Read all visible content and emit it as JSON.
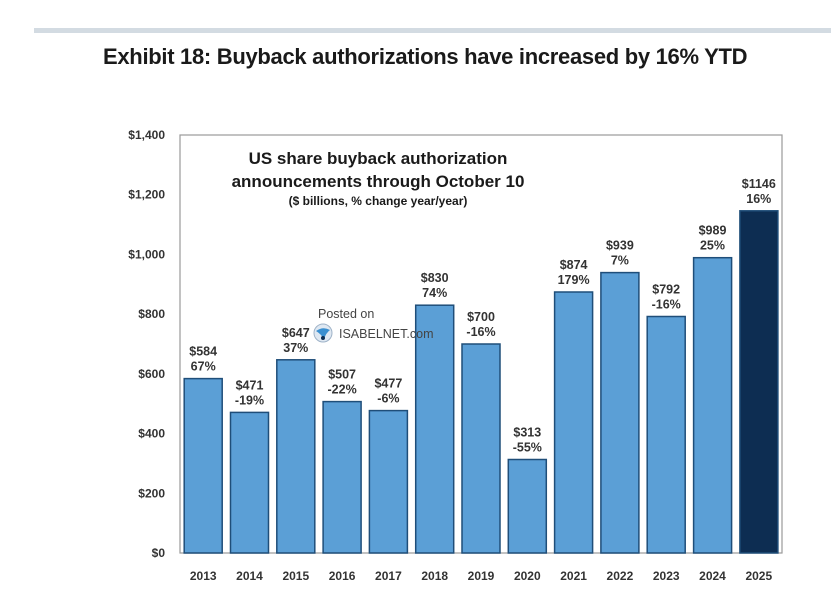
{
  "exhibit": {
    "title": "Exhibit 18: Buyback authorizations have increased by 16% YTD"
  },
  "watermark": {
    "line1": "Posted on",
    "line2": "ISABELNET.com",
    "icon": "isabelnet-logo-icon"
  },
  "colors": {
    "bar": "#5b9fd6",
    "bar_highlight": "#0d2d52",
    "bar_edge": "#1f4e79",
    "frame": "#9a9a9a"
  },
  "chart_data": {
    "type": "bar",
    "title": "US share buyback authorization announcements through October 10",
    "title_lines": [
      "US share buyback authorization",
      "announcements through October 10"
    ],
    "subtitle": "($ billions, % change year/year)",
    "xlabel": "",
    "ylabel": "",
    "ylim": [
      0,
      1400
    ],
    "yticks": [
      0,
      200,
      400,
      600,
      800,
      1000,
      1200,
      1400
    ],
    "ytick_labels": [
      "$0",
      "$200",
      "$400",
      "$600",
      "$800",
      "$1,000",
      "$1,200",
      "$1,400"
    ],
    "grid": false,
    "legend": "none",
    "categories": [
      "2013",
      "2014",
      "2015",
      "2016",
      "2017",
      "2018",
      "2019",
      "2020",
      "2021",
      "2022",
      "2023",
      "2024",
      "2025"
    ],
    "values": [
      584,
      471,
      647,
      507,
      477,
      830,
      700,
      313,
      874,
      939,
      792,
      989,
      1146
    ],
    "value_labels": [
      "$584",
      "$471",
      "$647",
      "$507",
      "$477",
      "$830",
      "$700",
      "$313",
      "$874",
      "$939",
      "$792",
      "$989",
      "$1146"
    ],
    "pct_change_labels": [
      "67%",
      "-19%",
      "37%",
      "-22%",
      "-6%",
      "74%",
      "-16%",
      "-55%",
      "179%",
      "7%",
      "-16%",
      "25%",
      "16%"
    ],
    "highlight_category": "2025"
  }
}
